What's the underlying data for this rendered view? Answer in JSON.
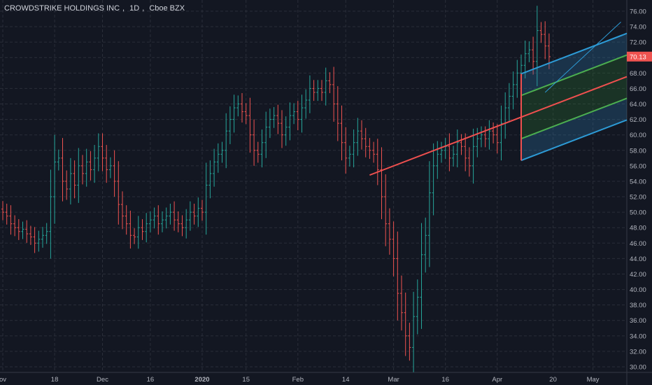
{
  "header": {
    "symbol": "CROWDSTRIKE HOLDINGS INC",
    "interval": "1D",
    "exchange": "Cboe BZX"
  },
  "colors": {
    "background": "#131722",
    "grid": "#2a2e39",
    "up_candle": "#26a69a",
    "down_candle": "#ef5350",
    "pitchfork_median": "#f0504f",
    "pitchfork_inner": "#4caf50",
    "pitchfork_outer": "#2d9bd6",
    "price_label_bg": "#ef5350",
    "axis_text": "#b2b5be"
  },
  "chart_data": {
    "type": "candlestick",
    "title": "CROWDSTRIKE HOLDINGS INC, 1D, Cboe BZX",
    "y_axis_ticks": [
      30,
      32,
      34,
      36,
      38,
      40,
      42,
      44,
      46,
      48,
      50,
      52,
      54,
      56,
      58,
      60,
      62,
      64,
      66,
      68,
      70,
      72,
      74,
      76
    ],
    "y_axis_labels": [
      "30.00",
      "32.00",
      "34.00",
      "36.00",
      "38.00",
      "40.00",
      "42.00",
      "44.00",
      "46.00",
      "48.00",
      "50.00",
      "52.00",
      "54.00",
      "56.00",
      "58.00",
      "60.00",
      "62.00",
      "64.00",
      "66.00",
      "68.00",
      "70.00",
      "72.00",
      "74.00",
      "76.00"
    ],
    "ylim": [
      29.5,
      77
    ],
    "x_axis_labels": [
      "ov",
      "18",
      "Dec",
      "16",
      "2020",
      "15",
      "Feb",
      "14",
      "Mar",
      "16",
      "Apr",
      "20",
      "May"
    ],
    "x_axis_label_index": [
      0,
      13,
      25,
      37,
      50,
      61,
      74,
      86,
      98,
      111,
      124,
      138,
      148
    ],
    "last_price_label": "70.13",
    "last_price": 70.13,
    "closes": [
      50.0,
      49.5,
      48.5,
      48.0,
      47.5,
      47.8,
      47.2,
      46.8,
      46.0,
      46.5,
      47.0,
      47.5,
      52.0,
      56.5,
      57.0,
      54.0,
      53.0,
      55.0,
      53.5,
      56.0,
      55.0,
      56.5,
      55.5,
      57.0,
      58.5,
      57.0,
      55.5,
      56.0,
      54.0,
      51.0,
      49.5,
      48.5,
      47.0,
      46.8,
      48.0,
      47.5,
      48.5,
      49.0,
      49.5,
      48.5,
      49.0,
      49.5,
      50.0,
      49.0,
      48.5,
      48.0,
      49.0,
      50.0,
      49.5,
      50.5,
      50.0,
      53.5,
      55.0,
      56.5,
      57.5,
      58.0,
      60.5,
      62.0,
      63.5,
      64.0,
      63.0,
      62.5,
      60.0,
      58.0,
      57.5,
      59.0,
      61.0,
      62.0,
      62.5,
      61.5,
      60.0,
      61.0,
      62.5,
      63.0,
      62.0,
      63.5,
      64.5,
      66.0,
      65.5,
      66.0,
      65.5,
      67.0,
      66.5,
      64.0,
      61.5,
      59.0,
      57.0,
      57.5,
      59.0,
      60.5,
      59.5,
      58.5,
      58.0,
      57.5,
      55.5,
      52.0,
      48.5,
      46.5,
      44.0,
      39.5,
      37.0,
      34.0,
      32.5,
      36.5,
      39.0,
      44.5,
      47.0,
      52.5,
      56.0,
      57.5,
      58.0,
      58.5,
      57.0,
      57.5,
      59.0,
      58.5,
      57.0,
      56.0,
      58.5,
      59.5,
      60.0,
      59.5,
      60.5,
      60.0,
      59.0,
      61.5,
      63.5,
      65.0,
      66.5,
      68.0,
      69.0,
      70.5,
      71.0,
      69.5,
      73.5,
      73.0,
      71.5,
      70.13
    ],
    "pitchfork": {
      "pivot_a": {
        "x_index": 92,
        "price": 54.8
      },
      "pivot_b": {
        "x_index": 130,
        "price": 67.9
      },
      "pivot_c": {
        "x_index": 130,
        "price": 56.7
      }
    },
    "grid": true,
    "price_scale_position": "right"
  }
}
